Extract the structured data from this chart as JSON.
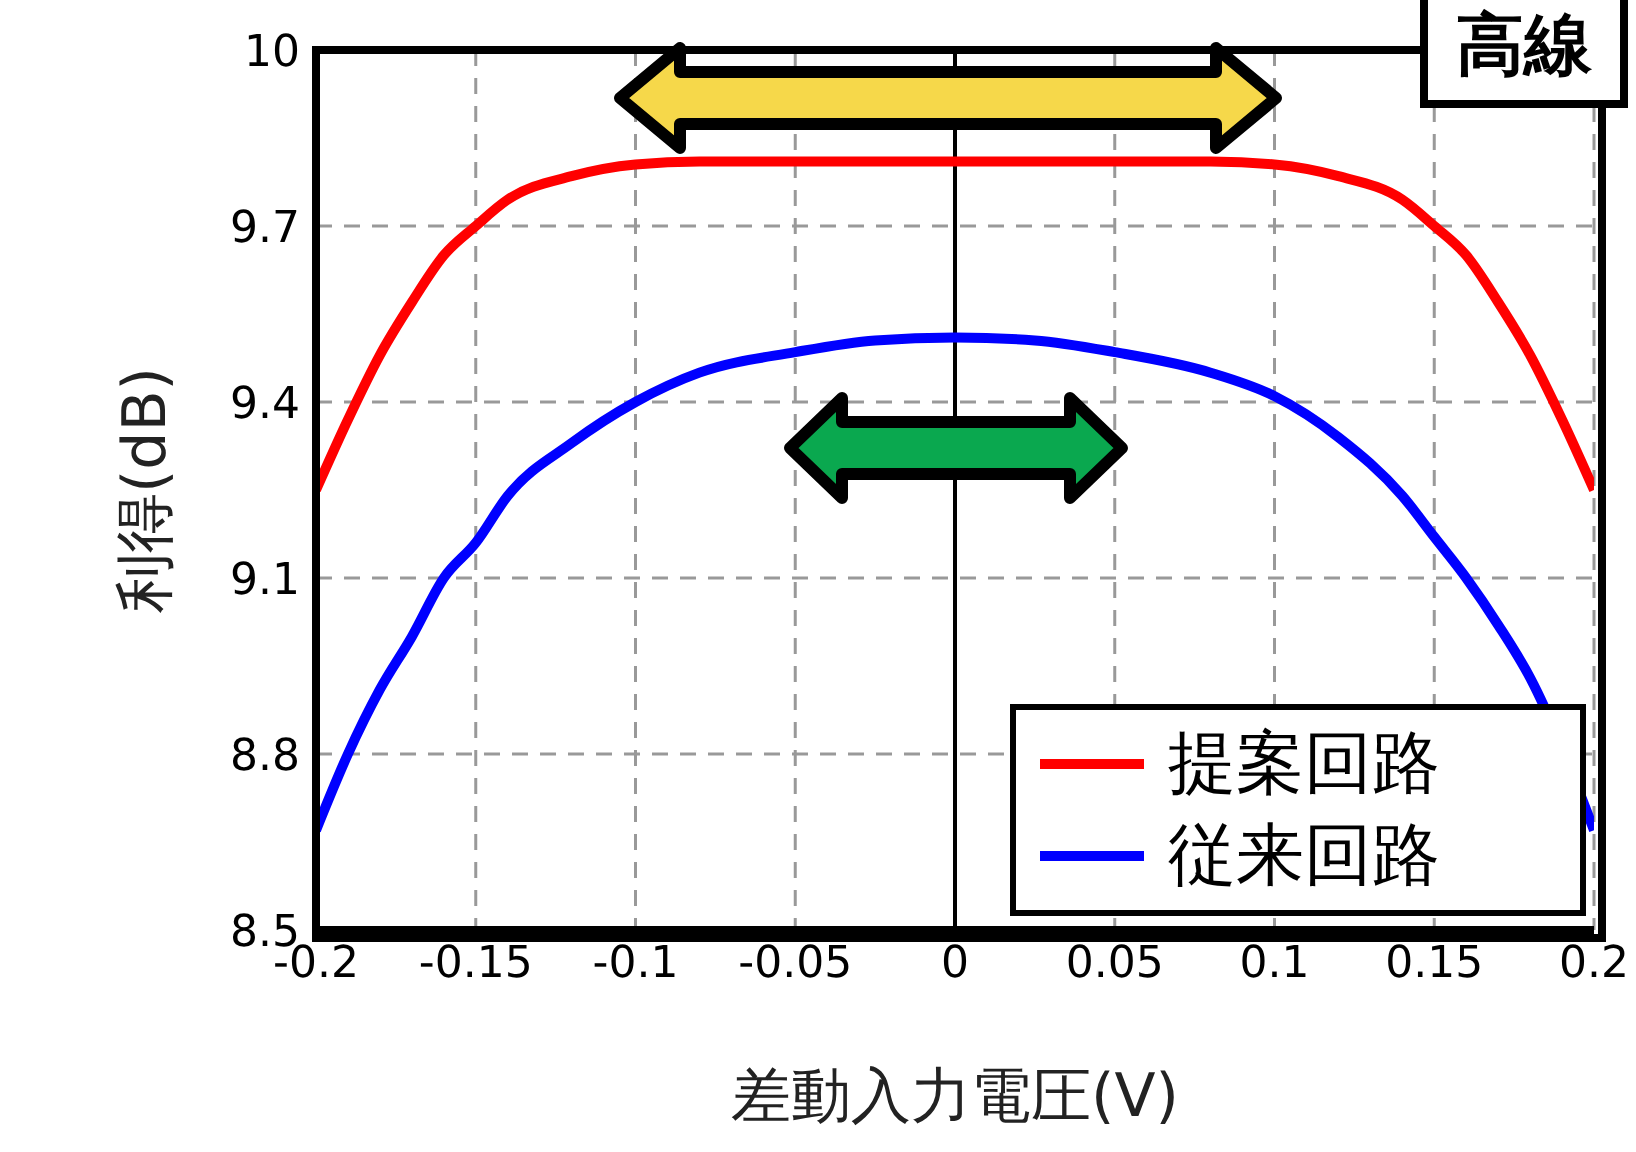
{
  "chart_data": {
    "type": "line",
    "xlabel": "差動入力電圧(V)",
    "ylabel": "利得(dB)",
    "annotations": [
      "高線"
    ],
    "x": [
      -0.2,
      -0.19,
      -0.18,
      -0.17,
      -0.16,
      -0.15,
      -0.14,
      -0.12,
      -0.1,
      -0.08,
      -0.05,
      -0.025,
      0,
      0.025,
      0.05,
      0.08,
      0.1,
      0.12,
      0.14,
      0.15,
      0.16,
      0.17,
      0.18,
      0.19,
      0.2
    ],
    "series": [
      {
        "name": "提案回路",
        "color": "#ff0000",
        "values": [
          9.25,
          9.37,
          9.48,
          9.57,
          9.65,
          9.7,
          9.745,
          9.785,
          9.805,
          9.81,
          9.81,
          9.81,
          9.81,
          9.81,
          9.81,
          9.81,
          9.805,
          9.785,
          9.745,
          9.7,
          9.65,
          9.57,
          9.48,
          9.37,
          9.25
        ]
      },
      {
        "name": "従来回路",
        "color": "#0000ff",
        "values": [
          8.67,
          8.8,
          8.91,
          9.0,
          9.1,
          9.16,
          9.24,
          9.33,
          9.4,
          9.45,
          9.485,
          9.505,
          9.51,
          9.505,
          9.485,
          9.45,
          9.41,
          9.34,
          9.24,
          9.17,
          9.1,
          9.02,
          8.93,
          null,
          8.67
        ]
      }
    ],
    "xlim": [
      -0.2,
      0.2
    ],
    "xticks": [
      -0.2,
      -0.15,
      -0.1,
      -0.05,
      0,
      0.05,
      0.1,
      0.15,
      0.2
    ],
    "ylim": [
      8.5,
      10
    ],
    "yticks": [
      8.5,
      8.8,
      9.1,
      9.4,
      9.7,
      10
    ],
    "ref_lines": [
      {
        "axis": "x",
        "value": 0,
        "color": "#000000"
      }
    ],
    "grid": true,
    "legend": "bottom right",
    "marker": "none",
    "line_style": "solid"
  }
}
